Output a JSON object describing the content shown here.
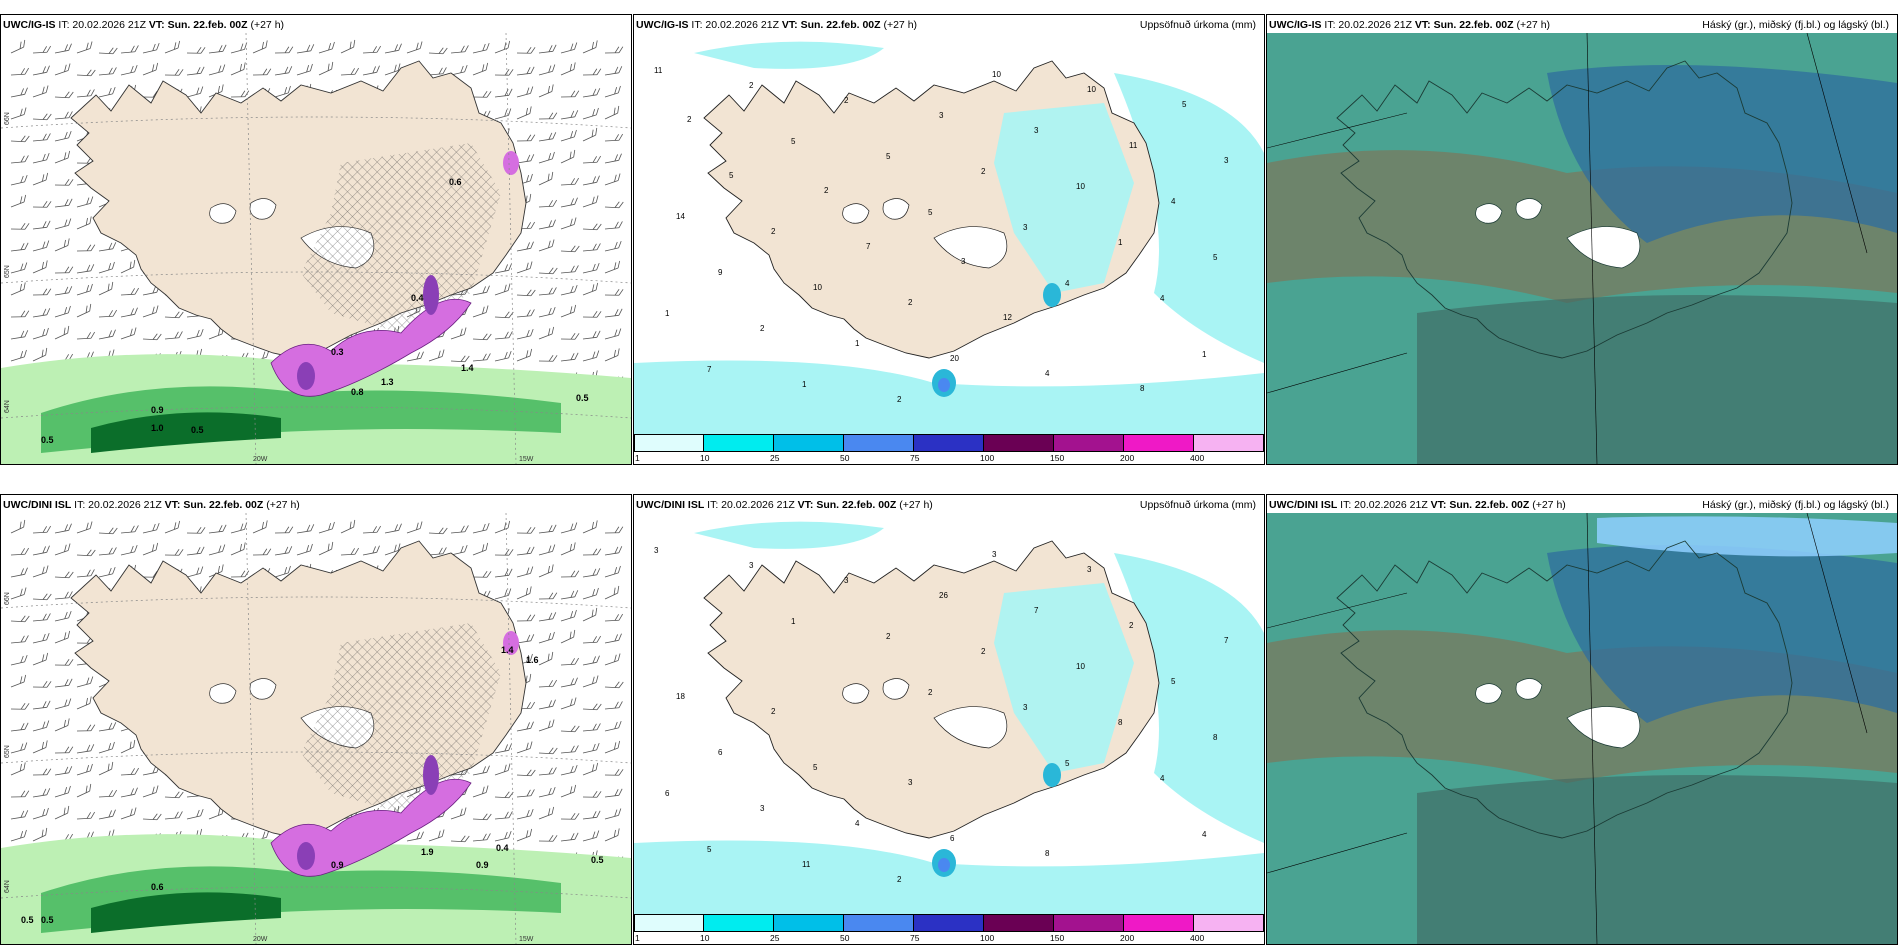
{
  "panels": [
    {
      "model": "UWC/IG-IS",
      "it": "IT: 20.02.2026 21Z",
      "vt_label": "VT:",
      "vt": "Sun. 22.feb. 00Z",
      "lead": "(+27 h)",
      "right_title": "",
      "lat_labels": [
        "66N",
        "65N",
        "64N"
      ],
      "lon_labels": [
        "20W",
        "15W"
      ],
      "values": [
        "0.9",
        "1.0",
        "0.5",
        "0.5",
        "0.5",
        "0.3",
        "0.4",
        "0.6",
        "1.3",
        "1.4",
        "0.8"
      ]
    },
    {
      "model": "UWC/IG-IS",
      "it": "IT: 20.02.2026 21Z",
      "vt_label": "VT:",
      "vt": "Sun. 22.feb. 00Z",
      "lead": "(+27 h)",
      "right_title": "Uppsöfnuð úrkoma (mm)",
      "values": [
        "11",
        "5",
        "5",
        "4",
        "1",
        "2",
        "5",
        "3",
        "4",
        "7",
        "2",
        "2",
        "1",
        "1",
        "1",
        "3",
        "10",
        "5",
        "2",
        "2",
        "3",
        "4",
        "9",
        "1",
        "10",
        "11",
        "14",
        "10",
        "20",
        "10",
        "3",
        "2",
        "2",
        "4",
        "5",
        "5",
        "7",
        "12",
        "8",
        "2",
        "2",
        "3"
      ]
    },
    {
      "model": "UWC/IG-IS",
      "it": "IT: 20.02.2026 21Z",
      "vt_label": "VT:",
      "vt": "Sun. 22.feb. 00Z",
      "lead": "(+27 h)",
      "right_title": "Háský (gr.), miðský (fj.bl.) og lágský (bl.)"
    },
    {
      "model": "UWC/DINI ISL",
      "it": "IT: 20.02.2026 21Z",
      "vt_label": "VT:",
      "vt": "Sun. 22.feb. 00Z",
      "lead": "(+27 h)",
      "right_title": "",
      "lat_labels": [
        "66N",
        "65N",
        "64N"
      ],
      "lon_labels": [
        "20W",
        "15W"
      ],
      "values": [
        "0.5",
        "0.5",
        "0.6",
        "0.9",
        "0.9",
        "1.9",
        "0.4",
        "0.5",
        "1.4",
        "1.6"
      ]
    },
    {
      "model": "UWC/DINI ISL",
      "it": "IT: 20.02.2026 21Z",
      "vt_label": "VT:",
      "vt": "Sun. 22.feb. 00Z",
      "lead": "(+27 h)",
      "right_title": "Uppsöfnuð úrkoma (mm)",
      "values": [
        "3",
        "1",
        "2",
        "5",
        "4",
        "3",
        "2",
        "3",
        "4",
        "5",
        "3",
        "2",
        "8",
        "6",
        "11",
        "26",
        "10",
        "8",
        "3",
        "2",
        "7",
        "5",
        "6",
        "4",
        "3",
        "2",
        "18",
        "5",
        "6",
        "3",
        "7",
        "2",
        "3",
        "8"
      ]
    },
    {
      "model": "UWC/DINI ISL",
      "it": "IT: 20.02.2026 21Z",
      "vt_label": "VT:",
      "vt": "Sun. 22.feb. 00Z",
      "lead": "(+27 h)",
      "right_title": "Háský (gr.), miðský (fj.bl.) og lágský (bl.)"
    }
  ],
  "colorbar": {
    "labels": [
      "1",
      "10",
      "25",
      "50",
      "75",
      "100",
      "150",
      "200",
      "400"
    ],
    "colors": [
      "#dffdfd",
      "#00ecef",
      "#00bfe8",
      "#4a88f0",
      "#2b31c4",
      "#6a0054",
      "#a3128f",
      "#ef19c6",
      "#f6b2f2"
    ]
  },
  "colors": {
    "land": "#f2e4d3",
    "sea_wet": "#a9f4f4",
    "cloud_bg": "#4aa392",
    "cloud_dark": "#3f6660",
    "cloud_blue": "#2f6d9d",
    "precip_green_light": "#bdf0b4",
    "precip_green_mid": "#56c06a",
    "precip_green_dark": "#0b6e2a",
    "snow_magenta": "#d56ee0",
    "snow_core": "#8a3fb6"
  }
}
